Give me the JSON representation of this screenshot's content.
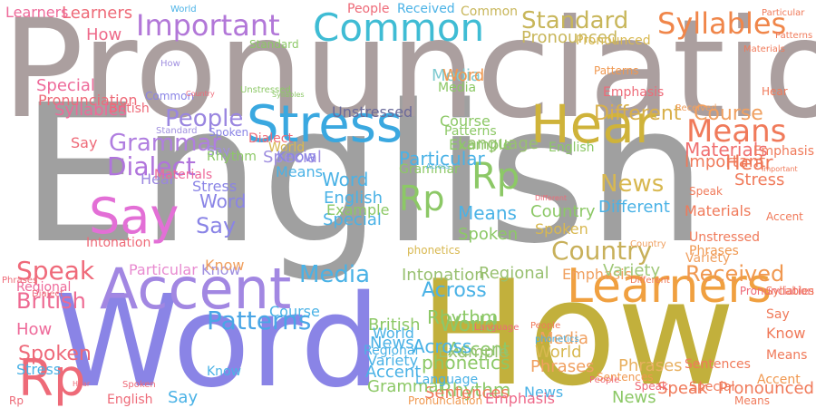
{
  "word_cloud": {
    "words": [
      {
        "text": "English",
        "color": "#a0a0a0"
      },
      {
        "text": "Pronunciation",
        "color": "#ab9f9f"
      },
      {
        "text": "How",
        "color": "#c2b03c"
      },
      {
        "text": "Word",
        "color": "#8a84e6"
      },
      {
        "text": "Stress",
        "color": "#3aa8e0"
      },
      {
        "text": "Hear",
        "color": "#cfb33a"
      },
      {
        "text": "Accent",
        "color": "#a287e2"
      },
      {
        "text": "Learners",
        "color": "#f0a040"
      },
      {
        "text": "Common",
        "color": "#3fbcd4"
      },
      {
        "text": "Important",
        "color": "#b277d8"
      },
      {
        "text": "Say",
        "color": "#e36fd6"
      },
      {
        "text": "Rp",
        "color": "#ee6a78"
      },
      {
        "text": "Syllables",
        "color": "#f0864a"
      },
      {
        "text": "Standard",
        "color": "#c8b65a"
      },
      {
        "text": "Means",
        "color": "#f07a5a"
      },
      {
        "text": "Rp",
        "color": "#8cc866"
      },
      {
        "text": "Rp",
        "color": "#8cc866"
      },
      {
        "text": "Patterns",
        "color": "#4aa6e6"
      },
      {
        "text": "Country",
        "color": "#c8b05a"
      },
      {
        "text": "People",
        "color": "#9a86e0"
      },
      {
        "text": "Grammar",
        "color": "#b07ee0"
      },
      {
        "text": "Dialect",
        "color": "#b074dc"
      },
      {
        "text": "Speak",
        "color": "#ef6a7a"
      },
      {
        "text": "British",
        "color": "#ee6a92"
      },
      {
        "text": "Media",
        "color": "#4ab2e6"
      },
      {
        "text": "News",
        "color": "#d8b850"
      },
      {
        "text": "Received",
        "color": "#f09850"
      },
      {
        "text": "Course",
        "color": "#f0a060"
      },
      {
        "text": "Different",
        "color": "#d8b04a"
      },
      {
        "text": "Unstressed",
        "color": "#6a6a9a"
      },
      {
        "text": "Language",
        "color": "#98c070"
      },
      {
        "text": "Media",
        "color": "#7ecad0"
      },
      {
        "text": "World",
        "color": "#8cc86a"
      },
      {
        "text": "Accent",
        "color": "#8cc86a"
      },
      {
        "text": "Intonation",
        "color": "#98c070"
      },
      {
        "text": "Regional",
        "color": "#98c070"
      },
      {
        "text": "Across",
        "color": "#4ab2e6"
      },
      {
        "text": "Spoken",
        "color": "#ee6a7a"
      },
      {
        "text": "Know",
        "color": "#a090e0"
      },
      {
        "text": "Pronounced",
        "color": "#c8b65a"
      },
      {
        "text": "Emphasis",
        "color": "#f0a060"
      },
      {
        "text": "Phrases",
        "color": "#e8b060"
      },
      {
        "text": "Variety",
        "color": "#a0c878"
      },
      {
        "text": "Special",
        "color": "#4ab2e6"
      },
      {
        "text": "Particular",
        "color": "#e88ad0"
      },
      {
        "text": "Materials",
        "color": "#f07070"
      },
      {
        "text": "Example",
        "color": "#98c070"
      },
      {
        "text": "Rhythm",
        "color": "#8cc86a"
      },
      {
        "text": "Sentences",
        "color": "#f09850"
      },
      {
        "text": "Hear",
        "color": "#f07a5a"
      },
      {
        "text": "Stress",
        "color": "#f07a5a"
      },
      {
        "text": "Hear",
        "color": "#9a86e0"
      },
      {
        "text": "How",
        "color": "#ee6a8a"
      },
      {
        "text": "Learners",
        "color": "#ee6a78"
      },
      {
        "text": "Speak",
        "color": "#f07a5a"
      },
      {
        "text": "Say",
        "color": "#ee6a78"
      },
      {
        "text": "Say",
        "color": "#8a84e6"
      },
      {
        "text": "Stress",
        "color": "#8a84e6"
      },
      {
        "text": "Word",
        "color": "#8a84e6"
      },
      {
        "text": "Word",
        "color": "#4ab2e6"
      },
      {
        "text": "English",
        "color": "#4ab2e6"
      },
      {
        "text": "English",
        "color": "#8cc866"
      },
      {
        "text": "Know",
        "color": "#f0a060"
      },
      {
        "text": "World",
        "color": "#d8b850"
      },
      {
        "text": "Common",
        "color": "#c8b65a"
      },
      {
        "text": "Learners",
        "color": "#ee6a9a"
      },
      {
        "text": "How",
        "color": "#ee6a9a"
      },
      {
        "text": "Say",
        "color": "#4ab2e6"
      },
      {
        "text": "Dialect",
        "color": "#ee6a78"
      },
      {
        "text": "Special",
        "color": "#a090e0"
      },
      {
        "text": "Means",
        "color": "#4ab2e6"
      },
      {
        "text": "Country",
        "color": "#8cc866"
      },
      {
        "text": "Spoken",
        "color": "#d8b850"
      },
      {
        "text": "Spoken",
        "color": "#8cc866"
      },
      {
        "text": "British",
        "color": "#8cc866"
      },
      {
        "text": "News",
        "color": "#4ab2e6"
      },
      {
        "text": "Course",
        "color": "#4ab2e6"
      },
      {
        "text": "Different",
        "color": "#4ab2e6"
      },
      {
        "text": "Phrases",
        "color": "#f09850"
      },
      {
        "text": "Important",
        "color": "#f07a5a"
      },
      {
        "text": "Materials",
        "color": "#f07a5a"
      },
      {
        "text": "Unstressed",
        "color": "#f07a5a"
      },
      {
        "text": "Pronounced",
        "color": "#f07a5a"
      },
      {
        "text": "Speak",
        "color": "#ee6a78"
      },
      {
        "text": "Accent",
        "color": "#f09850"
      },
      {
        "text": "Means",
        "color": "#f07a5a"
      },
      {
        "text": "Sentences",
        "color": "#f07a5a"
      },
      {
        "text": "Grammar",
        "color": "#8cc866"
      },
      {
        "text": "Across",
        "color": "#4ab2e6"
      },
      {
        "text": "Rhythm",
        "color": "#8cc866"
      },
      {
        "text": "Example",
        "color": "#8cc866"
      },
      {
        "text": "Accent",
        "color": "#4ab2e6"
      },
      {
        "text": "Variety",
        "color": "#4ab2e6"
      },
      {
        "text": "Regional",
        "color": "#4ab2e6"
      },
      {
        "text": "Particular",
        "color": "#4ab2e6"
      },
      {
        "text": "World",
        "color": "#4ab2e6"
      },
      {
        "text": "News",
        "color": "#4ab2e6"
      },
      {
        "text": "News",
        "color": "#8cc866"
      },
      {
        "text": "Phrases",
        "color": "#f0a060"
      },
      {
        "text": "Media",
        "color": "#f0a060"
      },
      {
        "text": "World",
        "color": "#d8b850"
      },
      {
        "text": "Know",
        "color": "#4ab2e6"
      },
      {
        "text": "Say",
        "color": "#a090e0"
      },
      {
        "text": "How",
        "color": "#a090e0"
      },
      {
        "text": "Emphasis",
        "color": "#ee6a8a"
      },
      {
        "text": "Pronunciation",
        "color": "#f09850"
      },
      {
        "text": "Language",
        "color": "#4ab2e6"
      },
      {
        "text": "Grammar",
        "color": "#8cc866"
      },
      {
        "text": "Stress",
        "color": "#4ab2e6"
      },
      {
        "text": "Spoken",
        "color": "#ee6a78"
      },
      {
        "text": "Rp",
        "color": "#ee6a78"
      },
      {
        "text": "English",
        "color": "#ee6a78"
      },
      {
        "text": "Regional",
        "color": "#ee6a9a"
      },
      {
        "text": "Dialect",
        "color": "#ee6a78"
      },
      {
        "text": "Phrases",
        "color": "#ee6a78"
      },
      {
        "text": "Pronunciation",
        "color": "#ee6a78"
      },
      {
        "text": "Syllables",
        "color": "#ee6a9a"
      },
      {
        "text": "British",
        "color": "#ee6a78"
      },
      {
        "text": "Standard",
        "color": "#a090e0"
      },
      {
        "text": "Common",
        "color": "#8a84e6"
      },
      {
        "text": "Special",
        "color": "#ee6a9a"
      },
      {
        "text": "People",
        "color": "#ee6a78"
      },
      {
        "text": "Received",
        "color": "#4ab2e6"
      },
      {
        "text": "Standard",
        "color": "#8cc866"
      },
      {
        "text": "Pronounced",
        "color": "#d8b850"
      },
      {
        "text": "Patterns",
        "color": "#f09850"
      },
      {
        "text": "Emphasis",
        "color": "#ee6a78"
      },
      {
        "text": "Word",
        "color": "#f09850"
      },
      {
        "text": "Media",
        "color": "#8cc866"
      },
      {
        "text": "Patterns",
        "color": "#8cc866"
      },
      {
        "text": "Course",
        "color": "#8cc866"
      },
      {
        "text": "Example",
        "color": "#8cc866"
      },
      {
        "text": "Rhythm",
        "color": "#8cc866"
      },
      {
        "text": "Spoken",
        "color": "#8a84e6"
      },
      {
        "text": "Know",
        "color": "#8a84e6"
      },
      {
        "text": "Means",
        "color": "#4ab2e6"
      },
      {
        "text": "World",
        "color": "#4ab2e6"
      },
      {
        "text": "Intonation",
        "color": "#ee6a78"
      },
      {
        "text": "Materials",
        "color": "#ee6a9a"
      },
      {
        "text": "Hear",
        "color": "#ee6a78"
      },
      {
        "text": "Pronunciation",
        "color": "#ee6a78"
      },
      {
        "text": "People",
        "color": "#ee6a78"
      },
      {
        "text": "Sentences",
        "color": "#f07a5a"
      },
      {
        "text": "Special",
        "color": "#f07a5a"
      },
      {
        "text": "Accent",
        "color": "#f07a5a"
      },
      {
        "text": "Means",
        "color": "#f07a5a"
      },
      {
        "text": "Know",
        "color": "#f07a5a"
      },
      {
        "text": "Say",
        "color": "#f07a5a"
      },
      {
        "text": "Hear",
        "color": "#f07a5a"
      },
      {
        "text": "Emphasis",
        "color": "#f07a5a"
      },
      {
        "text": "Speak",
        "color": "#f07a5a"
      },
      {
        "text": "Important",
        "color": "#f07a5a"
      },
      {
        "text": "Syllables",
        "color": "#f07a5a"
      },
      {
        "text": "People",
        "color": "#f07a5a"
      },
      {
        "text": "Country",
        "color": "#f0a060"
      },
      {
        "text": "Variety",
        "color": "#f0a060"
      },
      {
        "text": "Received",
        "color": "#f0a060"
      },
      {
        "text": "Particular",
        "color": "#f07a5a"
      },
      {
        "text": "Patterns",
        "color": "#f07a5a"
      },
      {
        "text": "Materials",
        "color": "#f07a5a"
      },
      {
        "text": "Different",
        "color": "#f07a5a"
      },
      {
        "text": "phonetics",
        "color": "#d8b850"
      },
      {
        "text": "phonetics",
        "color": "#4ab2e6"
      },
      {
        "text": "phonetics",
        "color": "#8cc866"
      },
      {
        "text": "Across",
        "color": "#4ab2e6"
      },
      {
        "text": "Syllables",
        "color": "#8cc866"
      },
      {
        "text": "Unstressed",
        "color": "#8cc866"
      },
      {
        "text": "Country",
        "color": "#ee6a78"
      },
      {
        "text": "Different",
        "color": "#ee6a78"
      },
      {
        "text": "Language",
        "color": "#ee6a78"
      }
    ]
  }
}
